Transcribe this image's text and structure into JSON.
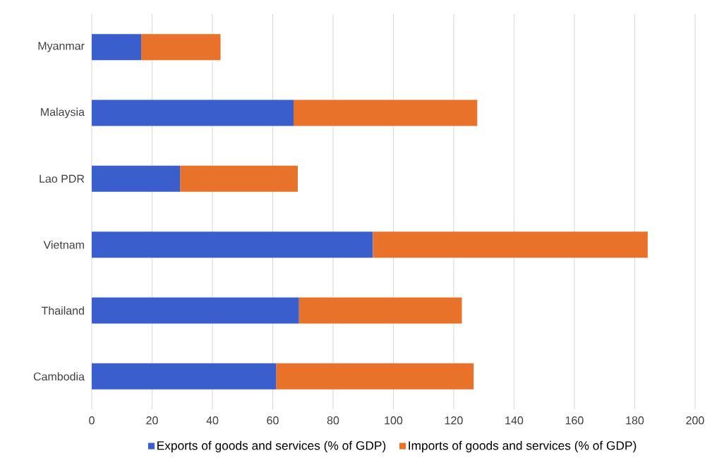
{
  "chart_data": {
    "type": "bar",
    "orientation": "horizontal",
    "stacked": true,
    "categories": [
      "Myanmar",
      "Malaysia",
      "Lao PDR",
      "Vietnam",
      "Thailand",
      "Cambodia"
    ],
    "series": [
      {
        "name": "Exports of goods and services (% of GDP)",
        "color": "#3a5fcd",
        "values": [
          16.4,
          66.9,
          29.3,
          93.2,
          68.7,
          61.1
        ]
      },
      {
        "name": "Imports of goods and services (% of GDP)",
        "color": "#e8722a",
        "values": [
          26.3,
          60.9,
          39.0,
          91.1,
          54.0,
          65.5
        ]
      }
    ],
    "xlim": [
      0,
      200
    ],
    "xticks": [
      0,
      20,
      40,
      60,
      80,
      100,
      120,
      140,
      160,
      180,
      200
    ],
    "grid": "x",
    "legend": "bottom"
  }
}
